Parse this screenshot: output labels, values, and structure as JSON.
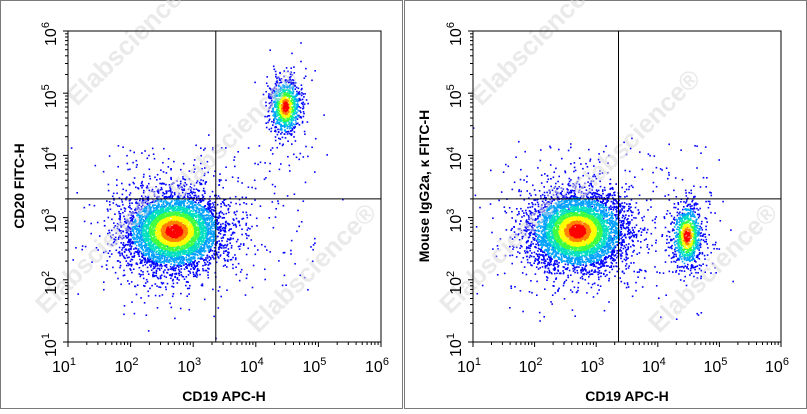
{
  "chart_data": [
    {
      "type": "scatter",
      "subtype": "flow-cytometry-density",
      "xlabel": "CD19 APC-H",
      "ylabel": "CD20 FITC-H",
      "xscale": "log",
      "yscale": "log",
      "xlim": [
        10,
        1000000
      ],
      "ylim": [
        10,
        1000000
      ],
      "x_ticks": [
        {
          "base": "10",
          "exp": "1"
        },
        {
          "base": "10",
          "exp": "2"
        },
        {
          "base": "10",
          "exp": "3"
        },
        {
          "base": "10",
          "exp": "4"
        },
        {
          "base": "10",
          "exp": "5"
        },
        {
          "base": "10",
          "exp": "6"
        }
      ],
      "y_ticks": [
        {
          "base": "10",
          "exp": "1"
        },
        {
          "base": "10",
          "exp": "2"
        },
        {
          "base": "10",
          "exp": "3"
        },
        {
          "base": "10",
          "exp": "4"
        },
        {
          "base": "10",
          "exp": "5"
        },
        {
          "base": "10",
          "exp": "6"
        }
      ],
      "gates": {
        "x": 2300,
        "y": 2000
      },
      "populations": [
        {
          "center_x": 500,
          "center_y": 600,
          "spread_x_decades": 0.38,
          "spread_y_decades": 0.3,
          "count": 5200
        },
        {
          "center_x": 30000,
          "center_y": 60000,
          "spread_x_decades": 0.12,
          "spread_y_decades": 0.22,
          "count": 1000
        }
      ],
      "grid": false,
      "legend": "none"
    },
    {
      "type": "scatter",
      "subtype": "flow-cytometry-density",
      "xlabel": "CD19 APC-H",
      "ylabel": "Mouse IgG2a, κ FITC-H",
      "xscale": "log",
      "yscale": "log",
      "xlim": [
        10,
        1000000
      ],
      "ylim": [
        10,
        1000000
      ],
      "x_ticks": [
        {
          "base": "10",
          "exp": "1"
        },
        {
          "base": "10",
          "exp": "2"
        },
        {
          "base": "10",
          "exp": "3"
        },
        {
          "base": "10",
          "exp": "4"
        },
        {
          "base": "10",
          "exp": "5"
        },
        {
          "base": "10",
          "exp": "6"
        }
      ],
      "y_ticks": [
        {
          "base": "10",
          "exp": "1"
        },
        {
          "base": "10",
          "exp": "2"
        },
        {
          "base": "10",
          "exp": "3"
        },
        {
          "base": "10",
          "exp": "4"
        },
        {
          "base": "10",
          "exp": "5"
        },
        {
          "base": "10",
          "exp": "6"
        }
      ],
      "gates": {
        "x": 2300,
        "y": 2000
      },
      "populations": [
        {
          "center_x": 500,
          "center_y": 600,
          "spread_x_decades": 0.38,
          "spread_y_decades": 0.3,
          "count": 5200
        },
        {
          "center_x": 30000,
          "center_y": 500,
          "spread_x_decades": 0.12,
          "spread_y_decades": 0.25,
          "count": 900
        }
      ],
      "grid": false,
      "legend": "none"
    }
  ],
  "watermark": "Elabscience®",
  "colors": {
    "density_scale": [
      "#0000ff",
      "#00a0ff",
      "#00e0c0",
      "#40ff40",
      "#ffff00",
      "#ff8000",
      "#ff0000"
    ],
    "gate_line": "#000000",
    "frame": "#7a7a7a"
  }
}
